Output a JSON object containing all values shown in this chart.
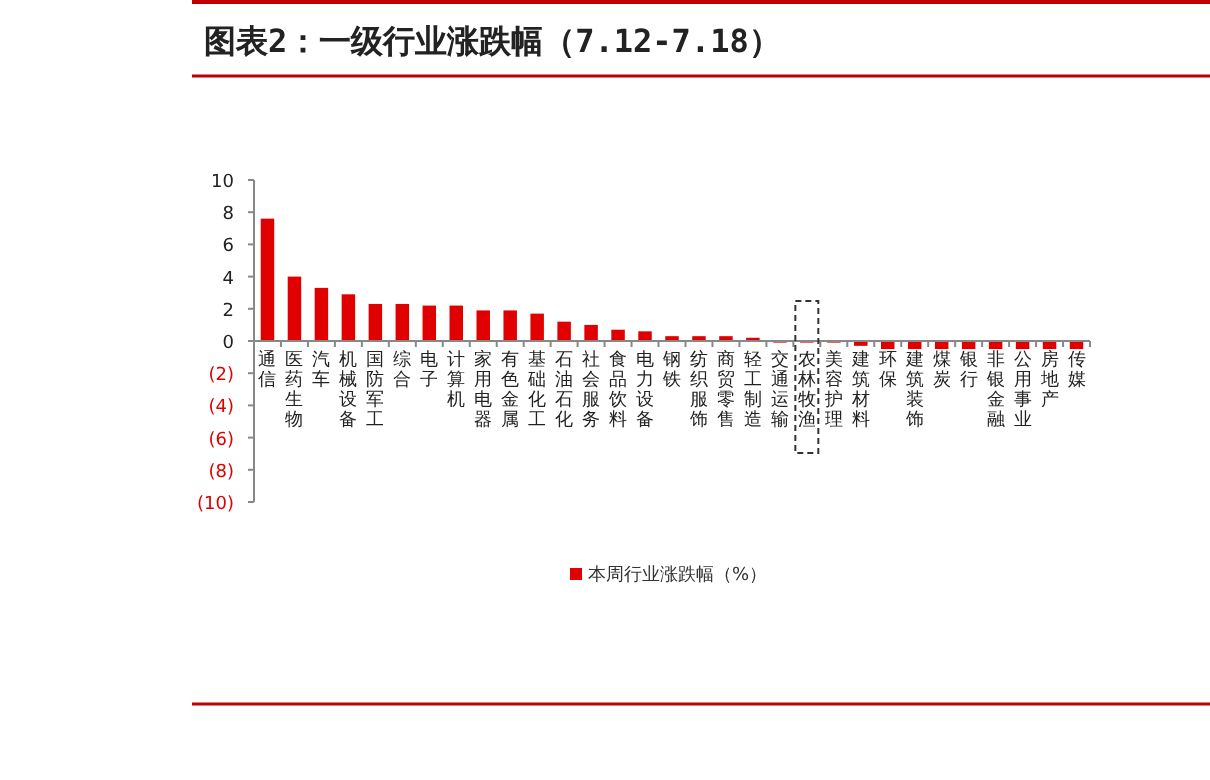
{
  "chart_data": {
    "type": "bar",
    "title": "图表2：一级行业涨跌幅（7.12-7.18）",
    "categories": [
      "通信",
      "医药生物",
      "汽车",
      "机械设备",
      "国防军工",
      "综合",
      "电子",
      "计算机",
      "家用电器",
      "有色金属",
      "基础化工",
      "石油石化",
      "社会服务",
      "食品饮料",
      "电力设备",
      "钢铁",
      "纺织服饰",
      "商贸零售",
      "轻工制造",
      "交通运输",
      "农林牧渔",
      "美容护理",
      "建筑材料",
      "环保",
      "建筑装饰",
      "煤炭",
      "银行",
      "非银金融",
      "公用事业",
      "房地产",
      "传媒"
    ],
    "series": [
      {
        "name": "本周行业涨跌幅（%）",
        "color": "#e00000",
        "values": [
          7.6,
          4.0,
          3.3,
          2.9,
          2.3,
          2.3,
          2.2,
          2.2,
          1.9,
          1.9,
          1.7,
          1.2,
          1.0,
          0.7,
          0.6,
          0.3,
          0.3,
          0.3,
          0.2,
          -0.1,
          -0.1,
          -0.1,
          -0.3,
          -0.5,
          -0.5,
          -0.5,
          -0.5,
          -0.5,
          -0.5,
          -0.5,
          -0.5
        ]
      }
    ],
    "ylim": [
      -10,
      10
    ],
    "yticks": [
      {
        "value": -10,
        "label": "(10)"
      },
      {
        "value": -8,
        "label": "(8)"
      },
      {
        "value": -6,
        "label": "(6)"
      },
      {
        "value": -4,
        "label": "(4)"
      },
      {
        "value": -2,
        "label": "(2)"
      },
      0,
      2,
      4,
      6,
      8,
      10
    ],
    "legend": "bottom"
  }
}
